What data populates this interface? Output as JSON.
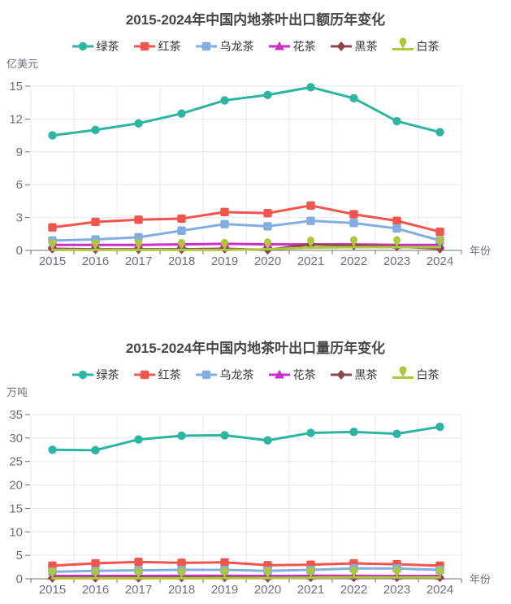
{
  "x_axis_name": "年份",
  "chart_data": [
    {
      "type": "line",
      "title": "2015-2024年中国内地茶叶出口额历年变化",
      "ylabel": "亿美元",
      "xlabel": "年份",
      "x": [
        "2015",
        "2016",
        "2017",
        "2018",
        "2019",
        "2020",
        "2021",
        "2022",
        "2023",
        "2024"
      ],
      "ylim": [
        0,
        15
      ],
      "yticks": [
        0,
        3,
        6,
        9,
        12,
        15
      ],
      "grid": true,
      "legend_position": "top",
      "series": [
        {
          "name": "绿茶",
          "color": "#2cb5a0",
          "symbol": "circle",
          "values": [
            10.5,
            11.0,
            11.6,
            12.5,
            13.7,
            14.2,
            14.9,
            13.9,
            11.8,
            10.8
          ]
        },
        {
          "name": "红茶",
          "color": "#f2544e",
          "symbol": "square",
          "values": [
            2.1,
            2.6,
            2.8,
            2.9,
            3.5,
            3.4,
            4.1,
            3.3,
            2.7,
            1.7
          ]
        },
        {
          "name": "乌龙茶",
          "color": "#83ade0",
          "symbol": "square",
          "values": [
            0.9,
            1.0,
            1.2,
            1.8,
            2.4,
            2.2,
            2.7,
            2.5,
            2.0,
            0.9
          ]
        },
        {
          "name": "花茶",
          "color": "#c930c9",
          "symbol": "triangle",
          "values": [
            0.5,
            0.5,
            0.5,
            0.55,
            0.6,
            0.55,
            0.55,
            0.55,
            0.5,
            0.5
          ]
        },
        {
          "name": "黑茶",
          "color": "#8d4649",
          "symbol": "diamond",
          "values": [
            0.15,
            0.1,
            0.1,
            0.1,
            0.15,
            0.05,
            0.55,
            0.45,
            0.35,
            0.15
          ]
        },
        {
          "name": "白茶",
          "color": "#adc63c",
          "symbol": "pin",
          "values": [
            0.05,
            0.05,
            0.05,
            0.05,
            0.05,
            0.1,
            0.25,
            0.3,
            0.3,
            0.3
          ]
        }
      ]
    },
    {
      "type": "line",
      "title": "2015-2024年中国内地茶叶出口量历年变化",
      "ylabel": "万吨",
      "xlabel": "年份",
      "x": [
        "2015",
        "2016",
        "2017",
        "2018",
        "2019",
        "2020",
        "2021",
        "2022",
        "2023",
        "2024"
      ],
      "ylim": [
        0,
        35
      ],
      "yticks": [
        0,
        5,
        10,
        15,
        20,
        25,
        30,
        35
      ],
      "grid": true,
      "legend_position": "top",
      "series": [
        {
          "name": "绿茶",
          "color": "#2cb5a0",
          "symbol": "circle",
          "values": [
            27.5,
            27.4,
            29.7,
            30.5,
            30.6,
            29.5,
            31.1,
            31.3,
            30.9,
            32.4
          ]
        },
        {
          "name": "红茶",
          "color": "#f2544e",
          "symbol": "square",
          "values": [
            2.8,
            3.3,
            3.6,
            3.4,
            3.5,
            2.9,
            3.0,
            3.3,
            3.1,
            2.8
          ]
        },
        {
          "name": "乌龙茶",
          "color": "#83ade0",
          "symbol": "square",
          "values": [
            1.5,
            1.7,
            1.8,
            1.9,
            1.9,
            1.7,
            1.9,
            2.2,
            2.2,
            1.9
          ]
        },
        {
          "name": "花茶",
          "color": "#c930c9",
          "symbol": "triangle",
          "values": [
            0.6,
            0.6,
            0.6,
            0.65,
            0.65,
            0.6,
            0.65,
            0.65,
            0.6,
            0.6
          ]
        },
        {
          "name": "黑茶",
          "color": "#8d4649",
          "symbol": "diamond",
          "values": [
            0.2,
            0.2,
            0.2,
            0.25,
            0.3,
            0.2,
            0.3,
            0.3,
            0.3,
            0.3
          ]
        },
        {
          "name": "白茶",
          "color": "#adc63c",
          "symbol": "pin",
          "values": [
            0.1,
            0.1,
            0.1,
            0.1,
            0.15,
            0.15,
            0.25,
            0.3,
            0.3,
            0.3
          ]
        }
      ]
    }
  ],
  "style_colors": {
    "title_text": "#464646",
    "axis_text": "#6E7079",
    "legend_text": "#333333",
    "grid_line": "#e5e8ee",
    "axis_line": "#6E7079"
  }
}
